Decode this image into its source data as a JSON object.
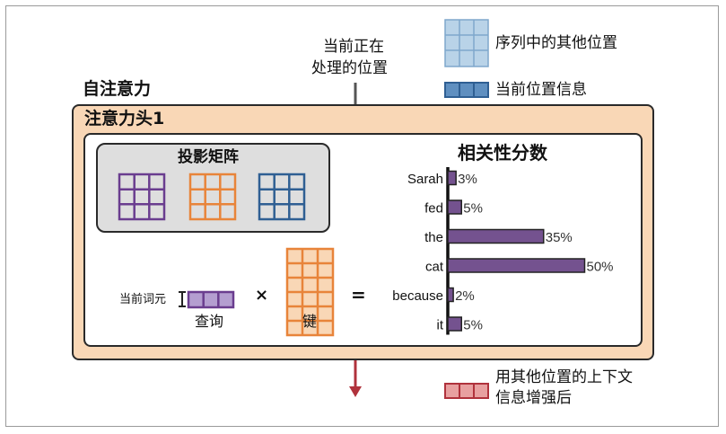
{
  "legend": {
    "other_positions": "序列中的其他位置",
    "current_position_info": "当前位置信息",
    "contextualized": [
      "用其他位置的上下文",
      "信息增强后"
    ]
  },
  "current_position_label": [
    "当前正在",
    "处理的位置"
  ],
  "self_attention_label": "自注意力",
  "head_label": "注意力头1",
  "projection_matrices_label": "投影矩阵",
  "current_token_label": "当前词元",
  "query_label": "查询",
  "key_label": "键",
  "times_symbol": "×",
  "equals_symbol": "=",
  "scores_title": "相关性分数",
  "colors": {
    "purple": "#6a3d8f",
    "orange": "#e8843a",
    "blue": "#2f5f93",
    "light_blue": "#b9d3e8",
    "red": "#b0323c",
    "peach": "#f9d7b6",
    "bar_fill": "#74528f"
  },
  "chart_data": {
    "type": "bar",
    "orientation": "horizontal",
    "title": "相关性分数",
    "categories": [
      "Sarah",
      "fed",
      "the",
      "cat",
      "because",
      "it"
    ],
    "values": [
      3,
      5,
      35,
      50,
      2,
      5
    ],
    "value_labels": [
      "3%",
      "5%",
      "35%",
      "50%",
      "2%",
      "5%"
    ],
    "xlim": [
      0,
      50
    ],
    "xlabel": "",
    "ylabel": ""
  }
}
